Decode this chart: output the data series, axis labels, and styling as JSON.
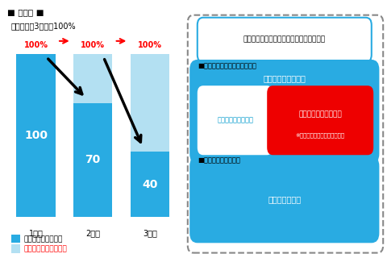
{
  "title_left": "■ 割引率 ■",
  "subtitle_left": "就航日から3年間：100%",
  "bar_labels": [
    "1年目",
    "2年目",
    "3年目"
  ],
  "bar_blue_values": [
    100,
    70,
    40
  ],
  "bar_lightblue_values": [
    0,
    30,
    60
  ],
  "bar_blue_color": "#29ABE2",
  "bar_lightblue_color": "#B3E0F2",
  "bar_text_values": [
    "100",
    "70",
    "40"
  ],
  "pct_labels": [
    "100%",
    "100%",
    "100%"
  ],
  "pct_color": "#FF0000",
  "legend_blue_label": "国際線新規就航割引",
  "legend_light_label": "国際線長距離ボーナス",
  "right_box_title": "成田ハブ化促進インセンティブ（国際線）",
  "right_section1_label": "■新規ネットワーク拡充のため",
  "right_mid_box_label": "国際線新規就航割引",
  "right_sub_left_label": "国際線朝発ボーナス",
  "right_sub_right_label": "国際線長距離ボーナス",
  "right_sub_right_sub": "※旅客便かつ成田空港新規路線",
  "right_section2_label": "■既存路線増強のため",
  "right_bottom_box_label": "国際線増量割引",
  "blue_dark": "#0099CC",
  "blue_mid": "#29ABE2",
  "blue_light": "#B3E0F2",
  "red_color": "#EE0000",
  "white": "#FFFFFF",
  "bg_color": "#FFFFFF"
}
